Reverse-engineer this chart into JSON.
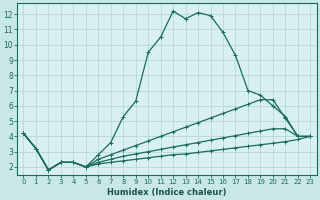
{
  "xlabel": "Humidex (Indice chaleur)",
  "xlim": [
    -0.5,
    23.5
  ],
  "ylim": [
    1.5,
    12.7
  ],
  "xticks": [
    0,
    1,
    2,
    3,
    4,
    5,
    6,
    7,
    8,
    9,
    10,
    11,
    12,
    13,
    14,
    15,
    16,
    17,
    18,
    19,
    20,
    21,
    22,
    23
  ],
  "yticks": [
    2,
    3,
    4,
    5,
    6,
    7,
    8,
    9,
    10,
    11,
    12
  ],
  "bg_color": "#c8e8e8",
  "plot_bg_color": "#d8f0f0",
  "grid_color": "#b0d4d4",
  "line_color": "#1a6b5a",
  "spine_color": "#1a6b5a",
  "xlabel_color": "#1a5545",
  "lines": [
    {
      "x": [
        0,
        1,
        2,
        3,
        4,
        5,
        6,
        7,
        8,
        9,
        10,
        11,
        12,
        13,
        14,
        15,
        16,
        17,
        18,
        19,
        20,
        21,
        22,
        23
      ],
      "y": [
        4.2,
        3.2,
        1.8,
        2.3,
        2.3,
        2.0,
        2.8,
        3.6,
        5.3,
        6.3,
        9.5,
        10.5,
        12.2,
        11.7,
        12.1,
        11.9,
        10.8,
        9.3,
        7.0,
        6.7,
        6.0,
        5.3,
        4.0,
        4.0
      ]
    },
    {
      "x": [
        0,
        1,
        2,
        3,
        4,
        5,
        6,
        7,
        8,
        9,
        10,
        11,
        12,
        13,
        14,
        15,
        16,
        17,
        18,
        19,
        20,
        21,
        22,
        23
      ],
      "y": [
        4.2,
        3.2,
        1.8,
        2.3,
        2.3,
        2.0,
        2.5,
        2.8,
        3.1,
        3.4,
        3.7,
        4.0,
        4.3,
        4.6,
        4.9,
        5.2,
        5.5,
        5.8,
        6.1,
        6.4,
        6.4,
        5.2,
        4.0,
        4.0
      ]
    },
    {
      "x": [
        0,
        1,
        2,
        3,
        4,
        5,
        6,
        7,
        8,
        9,
        10,
        11,
        12,
        13,
        14,
        15,
        16,
        17,
        18,
        19,
        20,
        21,
        22,
        23
      ],
      "y": [
        4.2,
        3.2,
        1.8,
        2.3,
        2.3,
        2.0,
        2.3,
        2.5,
        2.7,
        2.85,
        3.0,
        3.15,
        3.3,
        3.45,
        3.6,
        3.75,
        3.9,
        4.05,
        4.2,
        4.35,
        4.5,
        4.5,
        4.0,
        4.0
      ]
    },
    {
      "x": [
        0,
        1,
        2,
        3,
        4,
        5,
        6,
        7,
        8,
        9,
        10,
        11,
        12,
        13,
        14,
        15,
        16,
        17,
        18,
        19,
        20,
        21,
        22,
        23
      ],
      "y": [
        4.2,
        3.2,
        1.8,
        2.3,
        2.3,
        2.0,
        2.2,
        2.3,
        2.4,
        2.5,
        2.6,
        2.7,
        2.8,
        2.85,
        2.95,
        3.05,
        3.15,
        3.25,
        3.35,
        3.45,
        3.55,
        3.65,
        3.8,
        4.0
      ]
    }
  ]
}
